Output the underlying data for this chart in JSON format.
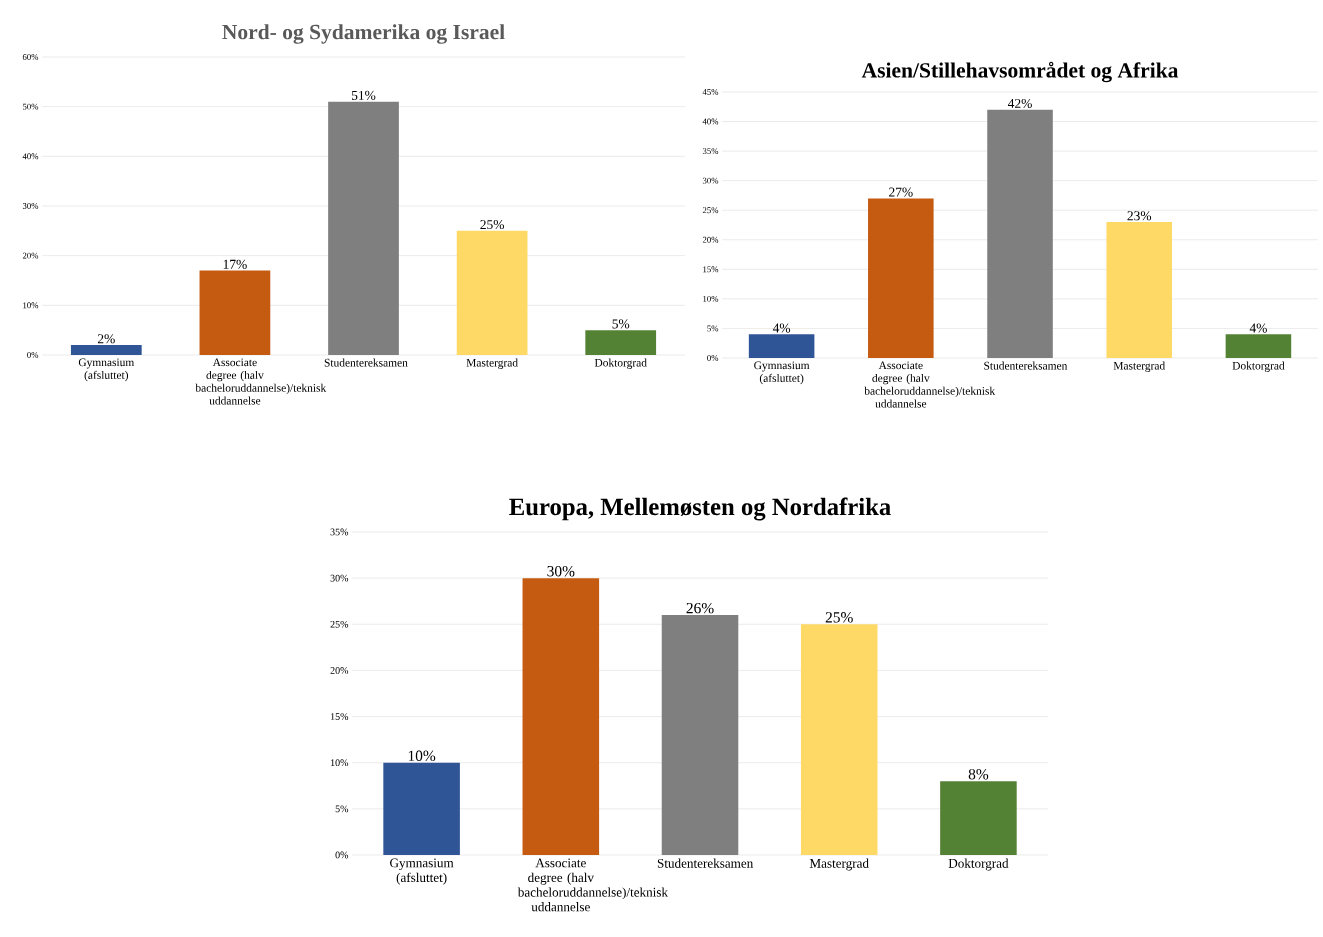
{
  "chart_data": [
    {
      "type": "bar",
      "title": "Nord- og Sydamerika og Israel",
      "categories": [
        "Gymnasium (afsluttet)",
        "Associate degree (halv bacheloruddannelse)/teknisk uddannelse",
        "Studentereksamen",
        "Mastergrad",
        "Doktorgrad"
      ],
      "values": [
        2,
        17,
        51,
        25,
        5
      ],
      "colors": [
        "#2f5597",
        "#c55a11",
        "#7f7f7f",
        "#ffd966",
        "#548235"
      ],
      "value_labels": [
        "2%",
        "17%",
        "51%",
        "25%",
        "5%"
      ],
      "ylim": [
        0,
        60
      ],
      "yticks": [
        {
          "value": 0,
          "label": "0%"
        },
        {
          "value": 10,
          "label": "10%"
        },
        {
          "value": 20,
          "label": "20%"
        },
        {
          "value": 30,
          "label": "30%"
        },
        {
          "value": 40,
          "label": "40%"
        },
        {
          "value": 50,
          "label": "50%"
        },
        {
          "value": 60,
          "label": "60%"
        }
      ],
      "grid": "y"
    },
    {
      "type": "bar",
      "title": "Asien/Stillehavsområdet og Afrika",
      "categories": [
        "Gymnasium (afsluttet)",
        "Associate degree (halv bacheloruddannelse)/teknisk uddannelse",
        "Studentereksamen",
        "Mastergrad",
        "Doktorgrad"
      ],
      "values": [
        4,
        27,
        42,
        23,
        4
      ],
      "colors": [
        "#2f5597",
        "#c55a11",
        "#7f7f7f",
        "#ffd966",
        "#548235"
      ],
      "value_labels": [
        "4%",
        "27%",
        "42%",
        "23%",
        "4%"
      ],
      "ylim": [
        0,
        45
      ],
      "yticks": [
        {
          "value": 0,
          "label": "0%"
        },
        {
          "value": 5,
          "label": "5%"
        },
        {
          "value": 10,
          "label": "10%"
        },
        {
          "value": 15,
          "label": "15%"
        },
        {
          "value": 20,
          "label": "20%"
        },
        {
          "value": 25,
          "label": "25%"
        },
        {
          "value": 30,
          "label": "30%"
        },
        {
          "value": 35,
          "label": "35%"
        },
        {
          "value": 40,
          "label": "40%"
        },
        {
          "value": 45,
          "label": "45%"
        }
      ],
      "grid": "y"
    },
    {
      "type": "bar",
      "title": "Europa, Mellemøsten og Nordafrika",
      "categories": [
        "Gymnasium (afsluttet)",
        "Associate degree (halv bacheloruddannelse)/teknisk uddannelse",
        "Studentereksamen",
        "Mastergrad",
        "Doktorgrad"
      ],
      "values": [
        10,
        30,
        26,
        25,
        8
      ],
      "colors": [
        "#2f5597",
        "#c55a11",
        "#7f7f7f",
        "#ffd966",
        "#548235"
      ],
      "value_labels": [
        "10%",
        "30%",
        "26%",
        "25%",
        "8%"
      ],
      "ylim": [
        0,
        35
      ],
      "yticks": [
        {
          "value": 0,
          "label": "0%"
        },
        {
          "value": 5,
          "label": "5%"
        },
        {
          "value": 10,
          "label": "10%"
        },
        {
          "value": 15,
          "label": "15%"
        },
        {
          "value": 20,
          "label": "20%"
        },
        {
          "value": 25,
          "label": "25%"
        },
        {
          "value": 30,
          "label": "30%"
        },
        {
          "value": 35,
          "label": "35%"
        }
      ],
      "grid": "y"
    }
  ]
}
